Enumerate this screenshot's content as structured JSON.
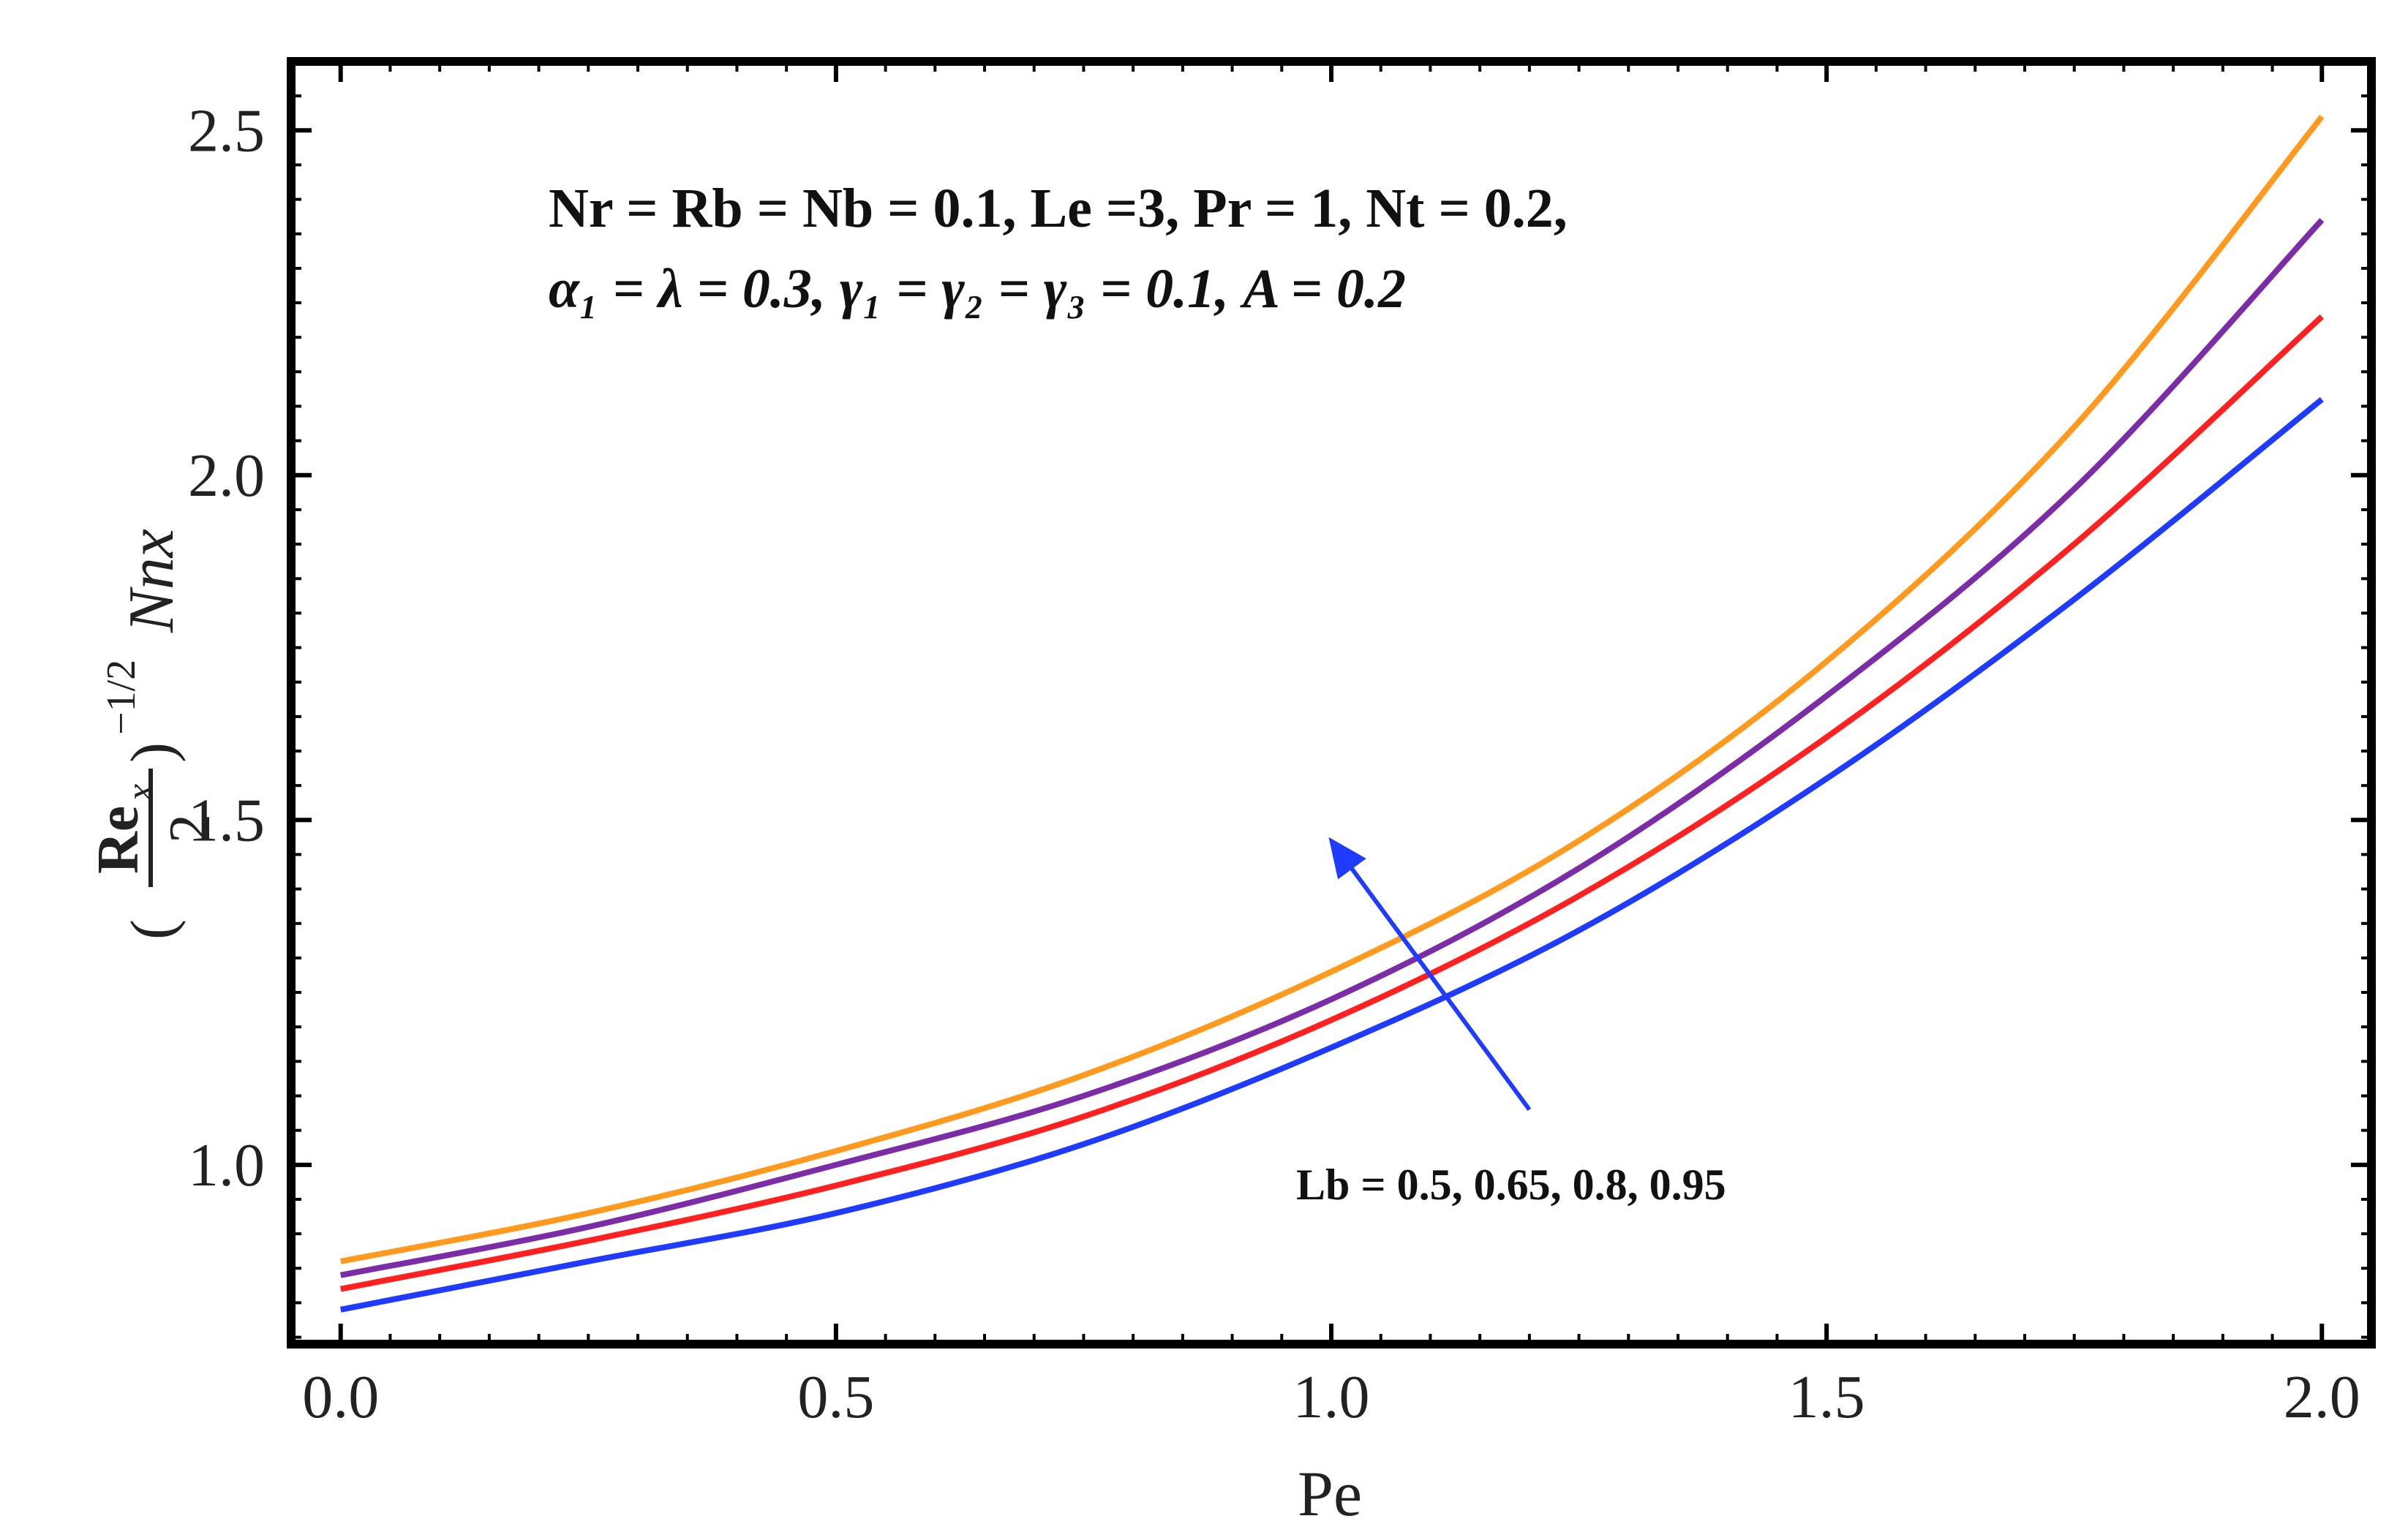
{
  "chart_data": {
    "type": "line",
    "xlabel": "Pe",
    "ylabel": {
      "numerator": "Re",
      "numerator_sub": "x",
      "denominator": "2",
      "exponent": "−1/2",
      "symbol": "Nnx"
    },
    "xlim": [
      -0.05,
      2.05
    ],
    "ylim": [
      0.74,
      2.6
    ],
    "xticks": [
      "0.0",
      "0.5",
      "1.0",
      "1.5",
      "2.0"
    ],
    "yticks": [
      "1.0",
      "1.5",
      "2.0",
      "2.5"
    ],
    "x": [
      0.0,
      0.25,
      0.5,
      0.75,
      1.0,
      1.25,
      1.5,
      1.75,
      2.0
    ],
    "series": [
      {
        "color": "#1f3bff",
        "values": [
          0.79,
          0.86,
          0.93,
          1.03,
          1.17,
          1.34,
          1.56,
          1.82,
          2.11
        ]
      },
      {
        "color": "#ff2020",
        "values": [
          0.82,
          0.89,
          0.97,
          1.07,
          1.21,
          1.39,
          1.62,
          1.9,
          2.23
        ]
      },
      {
        "color": "#7b2ca6",
        "values": [
          0.84,
          0.91,
          1.0,
          1.1,
          1.24,
          1.43,
          1.68,
          1.98,
          2.37
        ]
      },
      {
        "color": "#ff9a1f",
        "values": [
          0.86,
          0.93,
          1.02,
          1.13,
          1.28,
          1.47,
          1.73,
          2.07,
          2.52
        ]
      }
    ],
    "annotations": {
      "params_line1": "Nr = Rb = Nb = 0.1, Le =3, Pr = 1, Nt = 0.2,",
      "params_line2": "α₁ = λ = 0.3, γ₁ = γ₂ = γ₃ = 0.1, A = 0.2",
      "arrow_label": "Lb = 0.5, 0.65, 0.8, 0.95"
    },
    "arrow": {
      "from": [
        1.2,
        1.08
      ],
      "to": [
        1.0,
        1.47
      ],
      "color": "#1f3bff"
    },
    "grid": false,
    "legend": "none"
  }
}
